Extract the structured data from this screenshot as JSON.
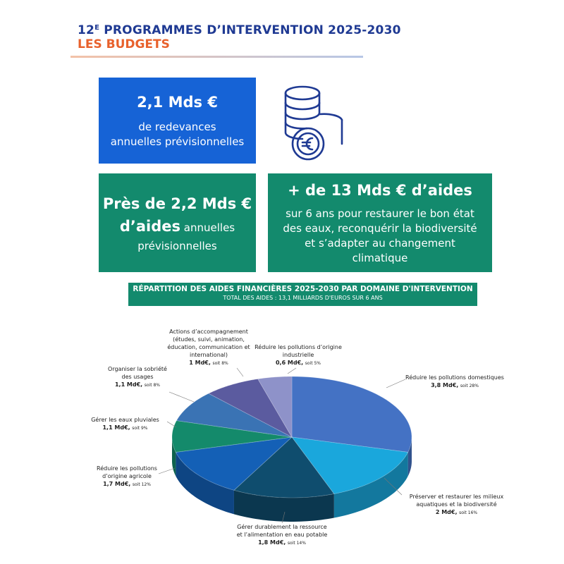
{
  "header": {
    "title_number": "12",
    "title_sup": "E",
    "title_rest": " PROGRAMMES D’INTERVENTION 2025-2030",
    "subtitle": "LES BUDGETS"
  },
  "boxes": {
    "redevances": {
      "amount": "2,1 Mds €",
      "line1": "de redevances",
      "line2": "annuelles prévisionnelles"
    },
    "aides_annuelles": {
      "line1": "Près de 2,2 Mds €",
      "line2_bold": "d’aides",
      "line2_rest": " annuelles",
      "line3": "prévisionnelles"
    },
    "aides_total": {
      "amount": "+ de 13 Mds € d’aides",
      "line1": "sur 6 ans pour restaurer le bon état",
      "line2": "des eaux, reconquérir la biodiversité",
      "line3": "et s’adapter au changement",
      "line4": "climatique"
    }
  },
  "icons": {
    "coins": "euro-coins-icon"
  },
  "banner": {
    "title": "RÉPARTITION DES AIDES FINANCIÈRES 2025-2030 PAR DOMAINE D'INTERVENTION",
    "subtitle": "TOTAL DES AIDES : 13,1 MILLIARDS D'EUROS SUR 6 ANS"
  },
  "chart_data": {
    "type": "pie",
    "title": "RÉPARTITION DES AIDES FINANCIÈRES 2025-2030 PAR DOMAINE D'INTERVENTION",
    "subtitle": "TOTAL DES AIDES : 13,1 MILLIARDS D'EUROS SUR 6 ANS",
    "unit": "Md€",
    "slices": [
      {
        "label": "Réduire les pollutions domestiques",
        "value": 3.8,
        "value_text": "3,8 Md€,",
        "pct_text": "soit 28%",
        "color": "#4472c4"
      },
      {
        "label": "Préserver et restaurer les milieux aquatiques et la biodiversité",
        "value": 2.0,
        "value_text": "2 Md€,",
        "pct_text": "soit 16%",
        "color": "#1aa7dc"
      },
      {
        "label": "Gérer durablement la ressource et l’alimentation en eau potable",
        "value": 1.8,
        "value_text": "1,8 Md€,",
        "pct_text": "soit 14%",
        "color": "#0f4d6e"
      },
      {
        "label": "Réduire les pollutions d’origine agricole",
        "value": 1.7,
        "value_text": "1,7 Md€,",
        "pct_text": "soit 12%",
        "color": "#1460b6"
      },
      {
        "label": "Gérer les eaux pluviales",
        "value": 1.1,
        "value_text": "1,1 Md€,",
        "pct_text": "soit 9%",
        "color": "#148a6b"
      },
      {
        "label": "Organiser la sobriété des usages",
        "value": 1.1,
        "value_text": "1,1 Md€,",
        "pct_text": "soit 8%",
        "color": "#3a73b4"
      },
      {
        "label": "Actions d’accompagnement (études, suivi, animation, éducation, communication et international)",
        "value": 1.0,
        "value_text": "1 Md€,",
        "pct_text": "soit 8%",
        "color": "#5b5b9f"
      },
      {
        "label": "Réduire les pollutions d’origine industrielle",
        "value": 0.6,
        "value_text": "0,6 Md€,",
        "pct_text": "soit 5%",
        "color": "#8e92c9"
      }
    ],
    "labels_text": {
      "domestiques": [
        "Réduire les pollutions domestiques"
      ],
      "milieux": [
        "Préserver et restaurer les milieux",
        "aquatiques et la biodiversité"
      ],
      "ressource": [
        "Gérer durablement la ressource",
        "et l’alimentation en eau potable"
      ],
      "agricole": [
        "Réduire les pollutions",
        "d’origine agricole"
      ],
      "pluviales": [
        "Gérer les eaux pluviales"
      ],
      "sobriete": [
        "Organiser la sobriété",
        "des usages"
      ],
      "accompagnement": [
        "Actions d’accompagnement",
        "(études, suivi, animation,",
        "éducation, communication et",
        "international)"
      ],
      "industrielle": [
        "Réduire les pollutions d’origine",
        "industrielle"
      ]
    }
  }
}
